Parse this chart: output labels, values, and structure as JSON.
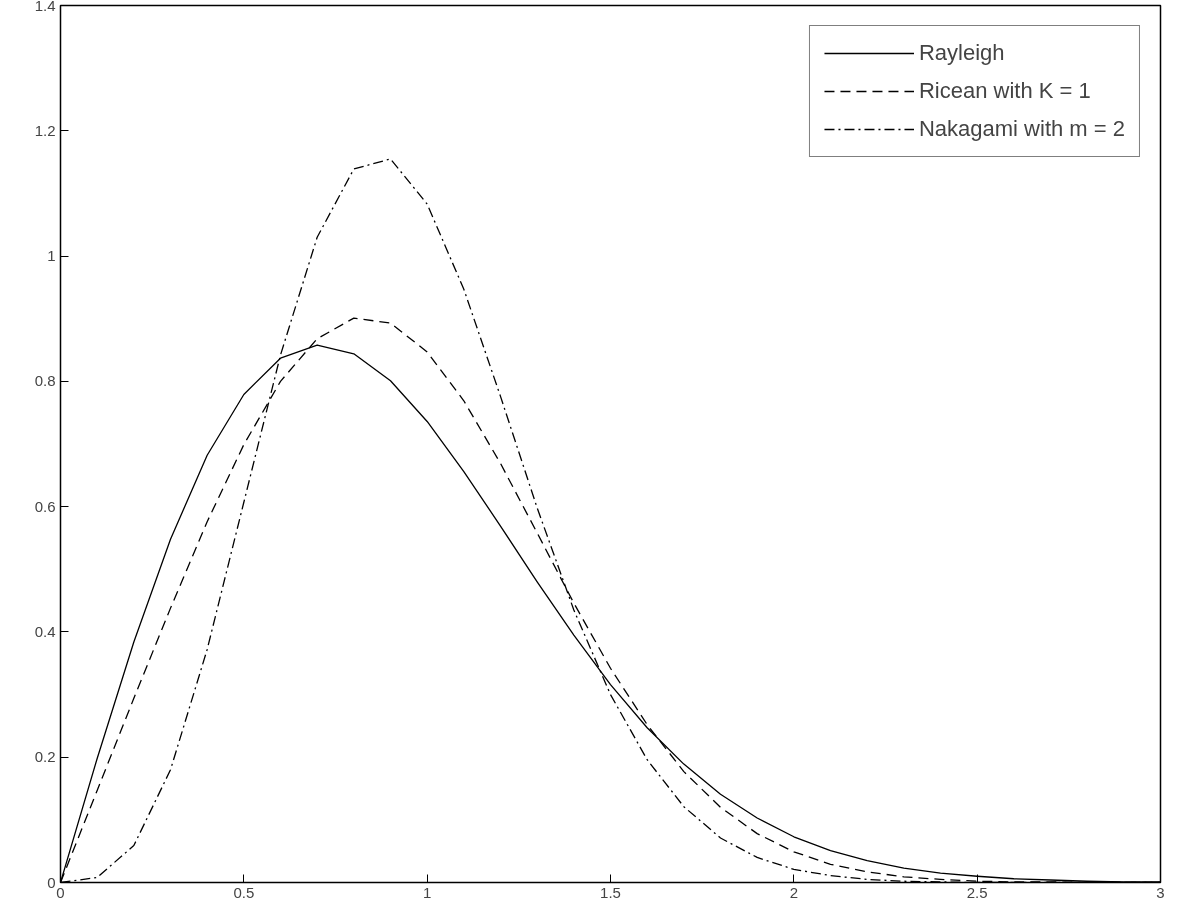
{
  "chart_data": {
    "type": "line",
    "x": [
      0,
      0.1,
      0.2,
      0.3,
      0.4,
      0.5,
      0.6,
      0.7,
      0.8,
      0.9,
      1.0,
      1.1,
      1.2,
      1.3,
      1.4,
      1.5,
      1.6,
      1.7,
      1.8,
      1.9,
      2.0,
      2.1,
      2.2,
      2.3,
      2.4,
      2.5,
      2.6,
      2.7,
      2.8,
      2.9,
      3.0
    ],
    "series": [
      {
        "name": "Rayleigh",
        "color": "#000000",
        "line_style": "solid",
        "values": [
          0,
          0.198,
          0.384,
          0.548,
          0.682,
          0.779,
          0.837,
          0.858,
          0.844,
          0.801,
          0.736,
          0.656,
          0.569,
          0.48,
          0.395,
          0.316,
          0.247,
          0.189,
          0.141,
          0.103,
          0.073,
          0.051,
          0.035,
          0.023,
          0.015,
          0.01,
          0.006,
          0.004,
          0.002,
          0.001,
          0.001
        ]
      },
      {
        "name": "Ricean with K = 1",
        "color": "#000000",
        "line_style": "dashed",
        "values": [
          0,
          0.147,
          0.294,
          0.438,
          0.576,
          0.699,
          0.8,
          0.868,
          0.901,
          0.893,
          0.847,
          0.769,
          0.669,
          0.558,
          0.446,
          0.342,
          0.252,
          0.177,
          0.12,
          0.078,
          0.049,
          0.029,
          0.017,
          0.009,
          0.005,
          0.002,
          0.001,
          0.001,
          0,
          0,
          0
        ]
      },
      {
        "name": "Nakagami with m = 2",
        "color": "#000000",
        "line_style": "dashdot",
        "values": [
          0,
          0.008,
          0.059,
          0.18,
          0.372,
          0.607,
          0.842,
          1.03,
          1.139,
          1.155,
          1.083,
          0.947,
          0.776,
          0.598,
          0.435,
          0.3,
          0.196,
          0.121,
          0.071,
          0.04,
          0.021,
          0.011,
          0.005,
          0.002,
          0.001,
          0,
          0,
          0,
          0,
          0,
          0
        ]
      }
    ],
    "xlim": [
      0,
      3
    ],
    "xticks": [
      0,
      0.5,
      1,
      1.5,
      2,
      2.5,
      3
    ],
    "ylim": [
      0,
      1.4
    ],
    "yticks": [
      0,
      0.2,
      0.4,
      0.6,
      0.8,
      1,
      1.2,
      1.4
    ],
    "grid": false,
    "legend": "top right",
    "marker": "none"
  }
}
